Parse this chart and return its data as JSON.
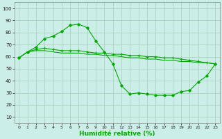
{
  "background_color": "#cceee8",
  "grid_color": "#aaccbb",
  "line_color": "#00aa00",
  "xlabel": "Humidité relative (%)",
  "ylabel_ticks": [
    10,
    20,
    30,
    40,
    50,
    60,
    70,
    80,
    90,
    100
  ],
  "xlim": [
    -0.5,
    23.5
  ],
  "ylim": [
    5,
    105
  ],
  "xticks": [
    0,
    1,
    2,
    3,
    4,
    5,
    6,
    7,
    8,
    9,
    10,
    11,
    12,
    13,
    14,
    15,
    16,
    17,
    18,
    19,
    20,
    21,
    22,
    23
  ],
  "series1_x": [
    0,
    1,
    2,
    3,
    4,
    5,
    6,
    7,
    8,
    9,
    10,
    11,
    12,
    13,
    14,
    15,
    16,
    17,
    18,
    19,
    20,
    21,
    22,
    23
  ],
  "series1_y": [
    59,
    64,
    68,
    75,
    77,
    81,
    86,
    87,
    84,
    73,
    64,
    54,
    36,
    29,
    30,
    29,
    28,
    28,
    28,
    31,
    32,
    39,
    44,
    54
  ],
  "series2_x": [
    0,
    1,
    2,
    3,
    4,
    5,
    6,
    7,
    8,
    9,
    10,
    11,
    12,
    13,
    14,
    15,
    16,
    17,
    18,
    19,
    20,
    21,
    22,
    23
  ],
  "series2_y": [
    59,
    64,
    65,
    65,
    64,
    63,
    63,
    63,
    62,
    62,
    61,
    61,
    60,
    59,
    59,
    58,
    58,
    57,
    57,
    56,
    56,
    55,
    55,
    54
  ],
  "series3_x": [
    0,
    1,
    2,
    3,
    4,
    5,
    6,
    7,
    8,
    9,
    10,
    11,
    12,
    13,
    14,
    15,
    16,
    17,
    18,
    19,
    20,
    21,
    22,
    23
  ],
  "series3_y": [
    59,
    64,
    66,
    67,
    66,
    65,
    65,
    65,
    64,
    63,
    63,
    62,
    62,
    61,
    61,
    60,
    60,
    59,
    59,
    58,
    57,
    56,
    55,
    54
  ]
}
